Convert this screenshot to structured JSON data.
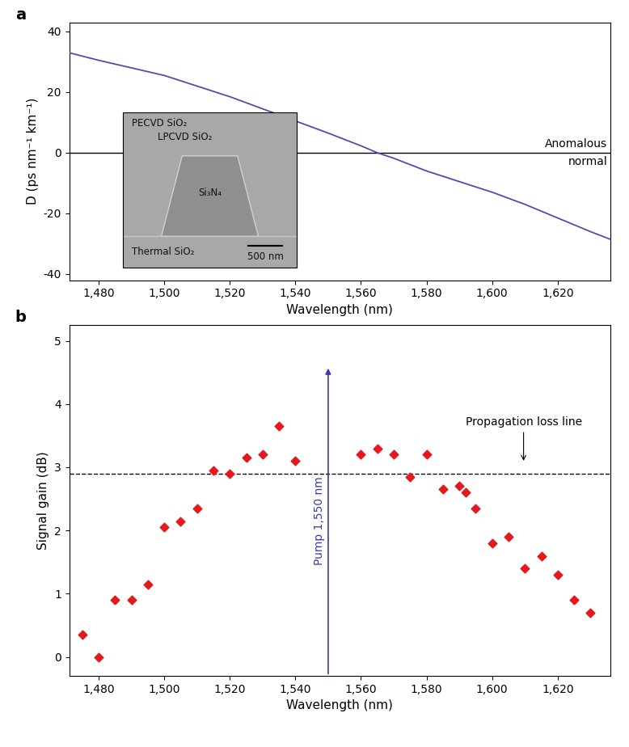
{
  "chart_data": [
    {
      "type": "line",
      "title": "a",
      "x": [
        1471,
        1480,
        1490,
        1500,
        1510,
        1520,
        1530,
        1540,
        1550,
        1560,
        1565,
        1570,
        1580,
        1590,
        1600,
        1610,
        1620,
        1630,
        1636
      ],
      "values": [
        33,
        30.5,
        28,
        25.5,
        22,
        18.5,
        14.5,
        10.5,
        6.5,
        2.3,
        0,
        -1.8,
        -6,
        -9.5,
        -13,
        -17,
        -21.5,
        -26,
        -28.5
      ],
      "color": "#4b50a8",
      "x_label": "Wavelength (nm)",
      "y_label": "D (ps nm⁻¹ km⁻¹)",
      "xlim": [
        1471,
        1636
      ],
      "ylim": [
        -42,
        43
      ],
      "xticks": [
        {
          "value": 1480,
          "label": "1,480"
        },
        {
          "value": 1500,
          "label": "1,500"
        },
        {
          "value": 1520,
          "label": "1,520"
        },
        {
          "value": 1540,
          "label": "1,540"
        },
        {
          "value": 1560,
          "label": "1,560"
        },
        {
          "value": 1580,
          "label": "1,580"
        },
        {
          "value": 1600,
          "label": "1,600"
        },
        {
          "value": 1620,
          "label": "1,620"
        }
      ],
      "yticks": [
        -40,
        -20,
        0,
        20,
        40
      ],
      "reference_lines": [
        {
          "y": 0,
          "color": "#000000",
          "line_style": "solid"
        }
      ],
      "annotations": [
        {
          "text": "Anomalous",
          "x": 1636,
          "y": 1
        },
        {
          "text": "normal",
          "x": 1636,
          "y": -1
        }
      ],
      "inset": {
        "labels": [
          "PECVD SiO₂",
          "LPCVD SiO₂",
          "Si₃N₄",
          "Thermal SiO₂"
        ],
        "scale_bar": "500 nm"
      }
    },
    {
      "type": "scatter",
      "title": "b",
      "x": [
        1475,
        1480,
        1485,
        1490,
        1495,
        1500,
        1505,
        1510,
        1515,
        1520,
        1525,
        1530,
        1535,
        1540,
        1560,
        1565,
        1570,
        1575,
        1580,
        1585,
        1590,
        1592,
        1595,
        1600,
        1605,
        1610,
        1615,
        1620,
        1625,
        1630
      ],
      "values": [
        0.35,
        0.0,
        0.9,
        0.9,
        1.15,
        2.05,
        2.15,
        2.35,
        2.95,
        2.9,
        3.15,
        3.2,
        3.65,
        3.1,
        3.2,
        3.3,
        3.2,
        2.85,
        3.2,
        2.65,
        2.7,
        2.6,
        2.35,
        1.8,
        1.9,
        1.4,
        1.6,
        1.3,
        0.9,
        0.7
      ],
      "color": "#e3191c",
      "marker": "D",
      "x_label": "Wavelength (nm)",
      "y_label": "Signal gain (dB)",
      "xlim": [
        1471,
        1636
      ],
      "ylim": [
        -0.3,
        5.25
      ],
      "xticks": [
        {
          "value": 1480,
          "label": "1,480"
        },
        {
          "value": 1500,
          "label": "1,500"
        },
        {
          "value": 1520,
          "label": "1,520"
        },
        {
          "value": 1540,
          "label": "1,540"
        },
        {
          "value": 1560,
          "label": "1,560"
        },
        {
          "value": 1580,
          "label": "1,580"
        },
        {
          "value": 1600,
          "label": "1,600"
        },
        {
          "value": 1620,
          "label": "1,620"
        }
      ],
      "yticks": [
        0,
        1,
        2,
        3,
        4,
        5
      ],
      "reference_lines": [
        {
          "y": 2.9,
          "color": "#000000",
          "line_style": "dashed",
          "label": "Propagation loss line"
        }
      ],
      "arrows": [
        {
          "x": 1550,
          "y": 4.6,
          "label": "Pump 1,550 nm",
          "color": "#3a3ab0"
        }
      ]
    }
  ]
}
